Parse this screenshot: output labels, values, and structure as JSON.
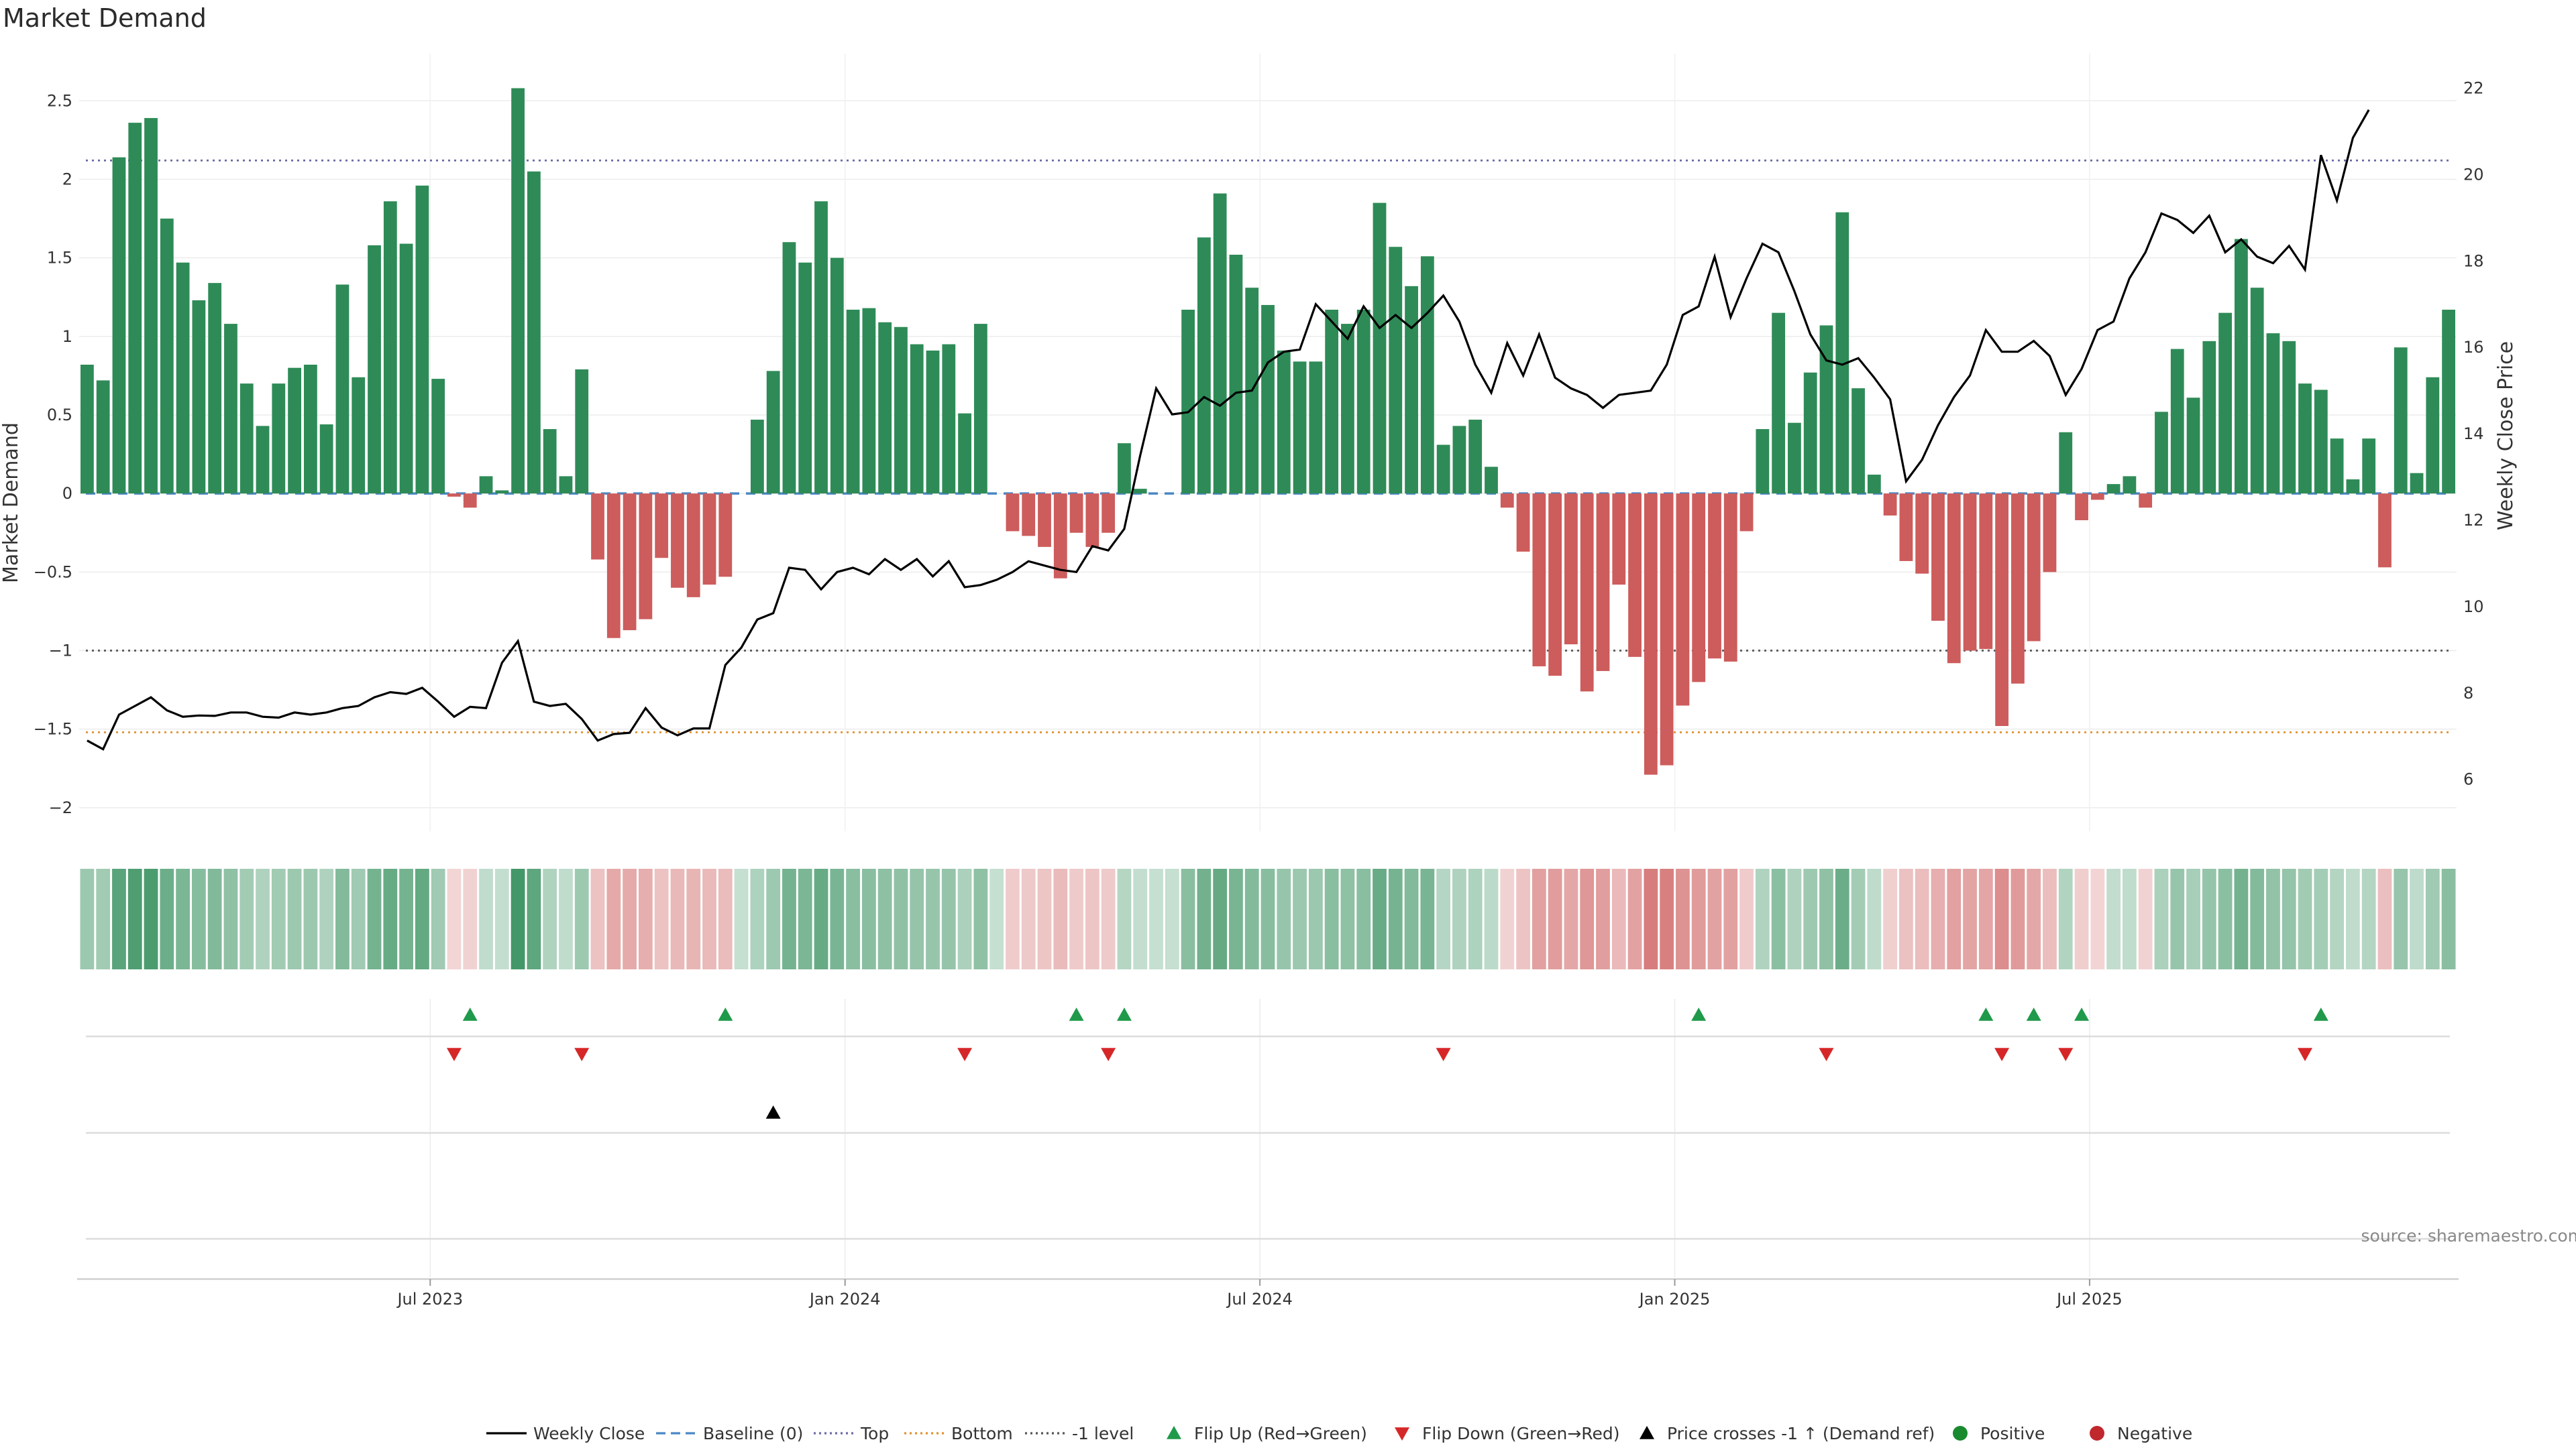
{
  "chart_data": {
    "type": "bar",
    "title": "Market Demand",
    "ylabel": "Market Demand",
    "y2label": "Weekly Close Price",
    "ylim": [
      -2.15,
      2.8
    ],
    "y2lim": [
      4.8,
      22.8
    ],
    "yticks": [
      2.5,
      2,
      1.5,
      1,
      0.5,
      0,
      -0.5,
      -1,
      -1.5,
      -2
    ],
    "ytick_labels": [
      "2.5",
      "2",
      "1.5",
      "1",
      "0.5",
      "0",
      "−0.5",
      "−1",
      "−1.5",
      "−2"
    ],
    "y2ticks": [
      22,
      20,
      18,
      16,
      14,
      12,
      10,
      8,
      6
    ],
    "x_tick_labels": [
      "Jul 2023",
      "Jan 2024",
      "Jul 2024",
      "Jan 2025",
      "Jul 2025"
    ],
    "x_tick_weeks": [
      22,
      48,
      74,
      100,
      126
    ],
    "reference_lines": {
      "top": 2.12,
      "minus_one": -1.0,
      "bottom": -1.52,
      "baseline": 0
    },
    "colors": {
      "positive": "#2e8b57",
      "negative": "#cd5c5c",
      "close": "#000000",
      "top": "#6a6aa8",
      "bottom": "#e0912f",
      "minus_one": "#555555",
      "baseline": "#4a86c5",
      "flip_up": "#1f9a4a",
      "flip_down": "#d62728",
      "cross": "#000000",
      "pos_dot": "#1a8a2e",
      "neg_dot": "#c0282e"
    },
    "series": [
      {
        "name": "Market Demand",
        "values": [
          0.82,
          0.72,
          2.14,
          2.36,
          2.39,
          1.75,
          1.47,
          1.23,
          1.34,
          1.08,
          0.7,
          0.43,
          0.7,
          0.8,
          0.82,
          0.44,
          1.33,
          0.74,
          1.58,
          1.86,
          1.59,
          1.96,
          0.73,
          -0.02,
          -0.09,
          0.11,
          0.02,
          2.58,
          2.05,
          0.41,
          0.11,
          0.79,
          -0.42,
          -0.92,
          -0.87,
          -0.8,
          -0.41,
          -0.6,
          -0.66,
          -0.58,
          -0.53,
          0,
          0.47,
          0.78,
          1.6,
          1.47,
          1.86,
          1.5,
          1.17,
          1.18,
          1.09,
          1.06,
          0.95,
          0.91,
          0.95,
          0.51,
          1.08,
          0,
          -0.24,
          -0.27,
          -0.34,
          -0.54,
          -0.25,
          -0.34,
          -0.25,
          0.32,
          0.03,
          0,
          0,
          1.17,
          1.63,
          1.91,
          1.52,
          1.31,
          1.2,
          0.91,
          0.84,
          0.84,
          1.17,
          1.08,
          1.17,
          1.85,
          1.57,
          1.32,
          1.51,
          0.31,
          0.43,
          0.47,
          0.17,
          -0.09,
          -0.37,
          -1.1,
          -1.16,
          -0.96,
          -1.26,
          -1.13,
          -0.58,
          -1.04,
          -1.79,
          -1.73,
          -1.35,
          -1.2,
          -1.05,
          -1.07,
          -0.24,
          0.41,
          1.15,
          0.45,
          0.77,
          1.07,
          1.79,
          0.67,
          0.12,
          -0.14,
          -0.43,
          -0.51,
          -0.81,
          -1.08,
          -1.0,
          -0.99,
          -1.48,
          -1.21,
          -0.94,
          -0.5,
          0.39,
          -0.17,
          -0.04,
          0.06,
          0.11,
          -0.09,
          0.52,
          0.92,
          0.61,
          0.97,
          1.15,
          1.62,
          1.31,
          1.02,
          0.97,
          0.7,
          0.66,
          0.35,
          0.09,
          0.35,
          -0.47,
          0.93,
          0.13,
          0.74,
          1.17
        ]
      },
      {
        "name": "Weekly Close",
        "values": [
          6.9,
          6.7,
          7.5,
          7.7,
          7.9,
          7.6,
          7.45,
          7.48,
          7.47,
          7.55,
          7.55,
          7.45,
          7.43,
          7.55,
          7.5,
          7.55,
          7.65,
          7.7,
          7.9,
          8.02,
          7.98,
          8.12,
          7.8,
          7.45,
          7.68,
          7.65,
          8.7,
          9.2,
          7.8,
          7.7,
          7.75,
          7.4,
          6.9,
          7.05,
          7.08,
          7.65,
          7.2,
          7.02,
          7.18,
          7.18,
          8.65,
          9.05,
          9.7,
          9.85,
          10.9,
          10.85,
          10.4,
          10.8,
          10.9,
          10.75,
          11.1,
          10.85,
          11.1,
          10.7,
          11.05,
          10.45,
          10.5,
          10.62,
          10.8,
          11.05,
          10.95,
          10.85,
          10.8,
          11.4,
          11.3,
          11.8,
          13.5,
          15.05,
          14.45,
          14.5,
          14.85,
          14.65,
          14.95,
          15.0,
          15.65,
          15.9,
          15.95,
          17.0,
          16.6,
          16.2,
          16.95,
          16.45,
          16.75,
          16.45,
          16.8,
          17.2,
          16.6,
          15.6,
          14.95,
          16.1,
          15.35,
          16.3,
          15.3,
          15.05,
          14.9,
          14.6,
          14.9,
          14.95,
          15.0,
          15.6,
          16.75,
          16.95,
          18.1,
          16.7,
          17.6,
          18.4,
          18.2,
          17.3,
          16.3,
          15.7,
          15.6,
          15.75,
          15.3,
          14.8,
          12.9,
          13.4,
          14.2,
          14.85,
          15.35,
          16.4,
          15.9,
          15.9,
          16.15,
          15.8,
          14.9,
          15.5,
          16.4,
          16.6,
          17.6,
          18.2,
          19.1,
          18.95,
          18.65,
          19.05,
          18.2,
          18.5,
          18.1,
          17.95,
          18.35,
          17.8,
          20.45,
          19.4,
          20.85,
          21.5
        ]
      }
    ],
    "flips_up": [
      24,
      40,
      62,
      65,
      101,
      119,
      122,
      125,
      140
    ],
    "flips_down": [
      23,
      31,
      55,
      64,
      85,
      109,
      120,
      124,
      139
    ],
    "price_crosses": [
      43
    ],
    "legend": [
      "Weekly Close",
      "Baseline (0)",
      "Top",
      "Bottom",
      "-1 level",
      "Flip Up (Red→Green)",
      "Flip Down (Green→Red)",
      "Price crosses -1 ↑ (Demand ref)",
      "Positive",
      "Negative"
    ],
    "source": "source: sharemaestro.com"
  }
}
